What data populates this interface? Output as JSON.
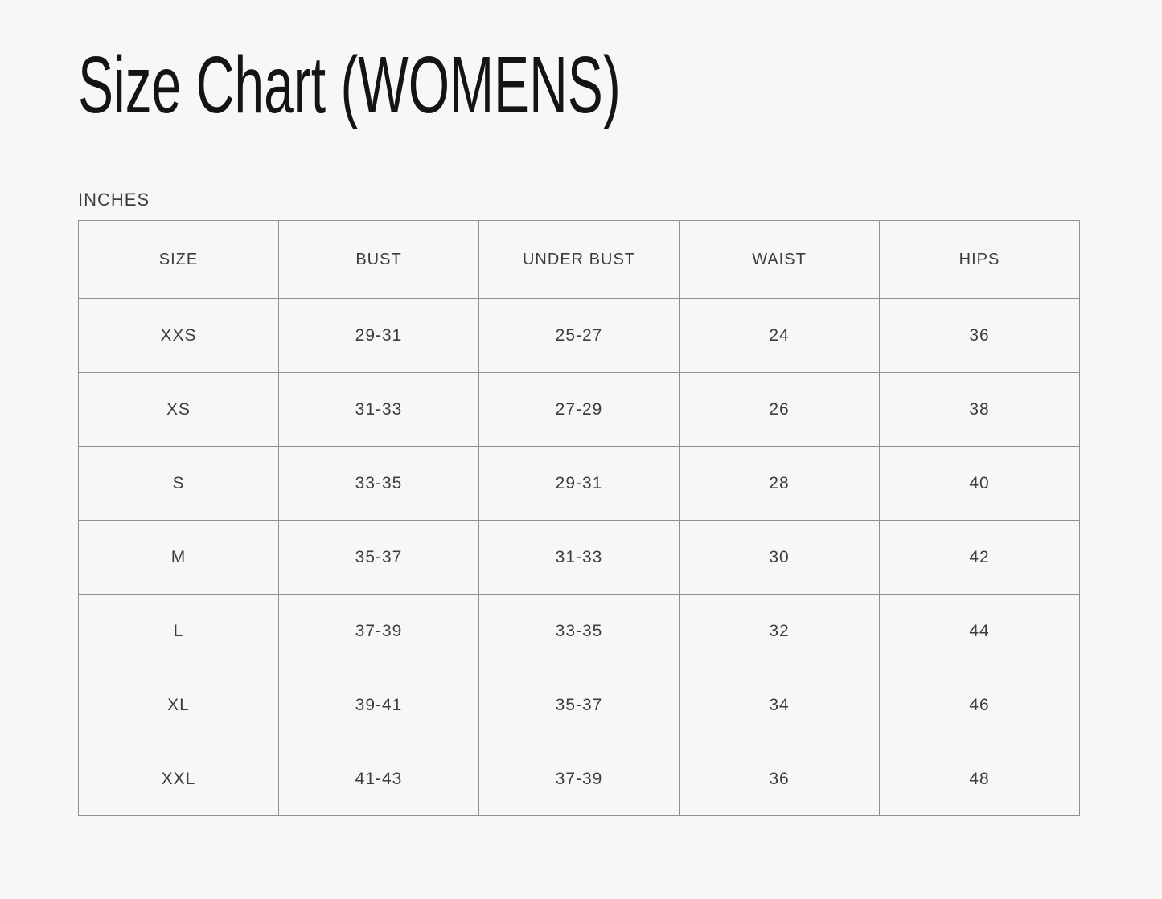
{
  "title": "Size Chart (WOMENS)",
  "unit_label": "INCHES",
  "chart_data": {
    "type": "table",
    "title": "Size Chart (WOMENS)",
    "unit": "INCHES",
    "columns": [
      "SIZE",
      "BUST",
      "UNDER BUST",
      "WAIST",
      "HIPS"
    ],
    "rows": [
      [
        "XXS",
        "29-31",
        "25-27",
        "24",
        "36"
      ],
      [
        "XS",
        "31-33",
        "27-29",
        "26",
        "38"
      ],
      [
        "S",
        "33-35",
        "29-31",
        "28",
        "40"
      ],
      [
        "M",
        "35-37",
        "31-33",
        "30",
        "42"
      ],
      [
        "L",
        "37-39",
        "33-35",
        "32",
        "44"
      ],
      [
        "XL",
        "39-41",
        "35-37",
        "34",
        "46"
      ],
      [
        "XXL",
        "41-43",
        "37-39",
        "36",
        "48"
      ]
    ]
  },
  "colors": {
    "background": "#f7f7f5",
    "text": "#3d3d3d",
    "title_text": "#141414",
    "border": "#8f8f8f"
  }
}
